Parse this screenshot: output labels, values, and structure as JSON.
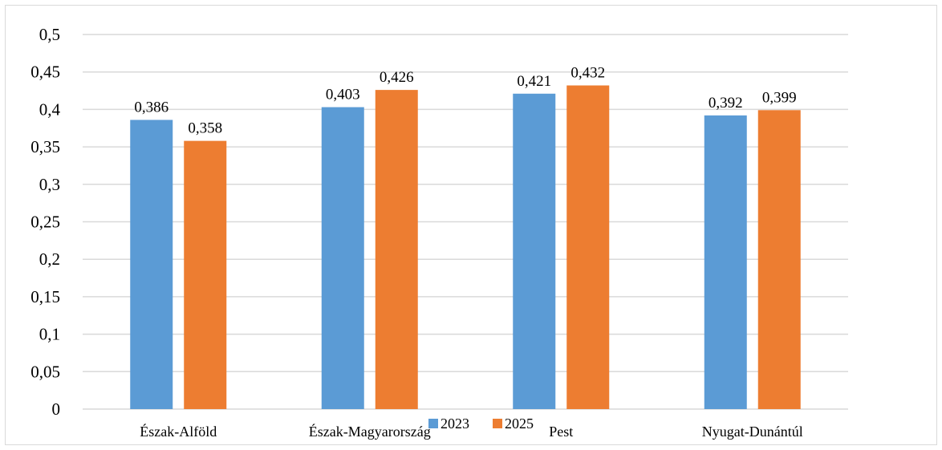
{
  "chart_data": {
    "type": "bar",
    "categories": [
      "Észak-Alföld",
      "Észak-Magyarország",
      "Pest",
      "Nyugat-Dunántúl"
    ],
    "series": [
      {
        "name": "2023",
        "values": [
          0.386,
          0.403,
          0.421,
          0.392
        ],
        "labels": [
          "0,386",
          "0,403",
          "0,421",
          "0,392"
        ],
        "color": "#5b9bd5"
      },
      {
        "name": "2025",
        "values": [
          0.358,
          0.426,
          0.432,
          0.399
        ],
        "labels": [
          "0,358",
          "0,426",
          "0,432",
          "0,399"
        ],
        "color": "#ed7d31"
      }
    ],
    "ylim": [
      0,
      0.5
    ],
    "yticks": [
      0,
      0.05,
      0.1,
      0.15,
      0.2,
      0.25,
      0.3,
      0.35,
      0.4,
      0.45,
      0.5
    ],
    "ytick_labels": [
      "0",
      "0,05",
      "0,1",
      "0,15",
      "0,2",
      "0,25",
      "0,3",
      "0,35",
      "0,4",
      "0,45",
      "0,5"
    ],
    "title": "",
    "xlabel": "",
    "ylabel": "",
    "grid": true,
    "grid_color": "#d9d9d9",
    "legend_position": "bottom"
  }
}
